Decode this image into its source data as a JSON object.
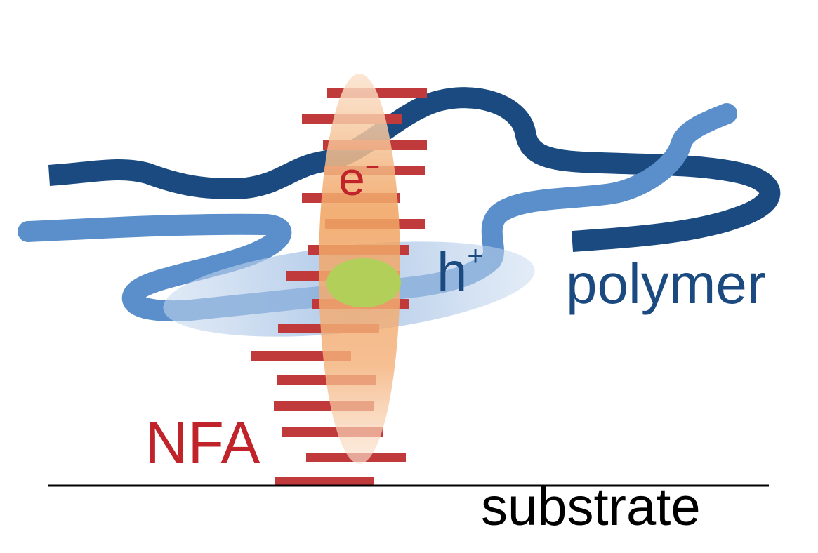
{
  "labels": {
    "electron": "e",
    "electron_charge": "−",
    "hole": "h",
    "hole_charge": "+",
    "polymer": "polymer",
    "nfa": "NFA",
    "substrate": "substrate"
  },
  "colors": {
    "polymer_dark": "#1a4a80",
    "polymer_light": "#5a8fcb",
    "nfa_bars": "#c0393b",
    "electron_cloud": "#f0a462",
    "hole_cloud": "#a9c4e6",
    "exciton": "#b2cf5a",
    "nfa_text": "#c0242a",
    "polymer_text": "#1a4a80",
    "substrate_line": "#000000"
  },
  "nfa_stack_bar_count": 16
}
